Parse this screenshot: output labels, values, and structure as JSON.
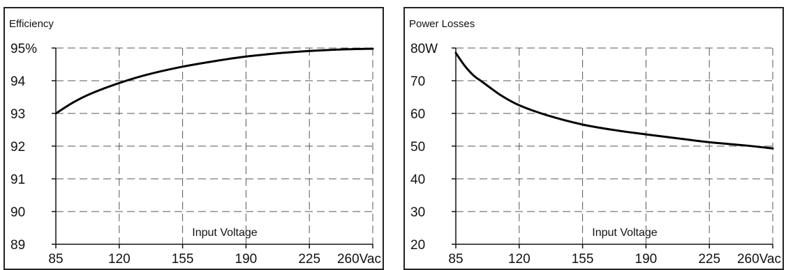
{
  "chart_data": [
    {
      "type": "line",
      "title": "Efficiency",
      "xlabel": "Input Voltage",
      "ylabel": "",
      "x_ticks": [
        85,
        120,
        155,
        190,
        225,
        260
      ],
      "x_tick_labels": [
        "85",
        "120",
        "155",
        "190",
        "225",
        "260Vac"
      ],
      "xlim": [
        85,
        260
      ],
      "y_ticks": [
        89,
        90,
        91,
        92,
        93,
        94,
        95
      ],
      "y_tick_labels": [
        "89",
        "90",
        "91",
        "92",
        "93",
        "94",
        "95%"
      ],
      "ylim": [
        89,
        95
      ],
      "grid": true,
      "series": [
        {
          "x": [
            85,
            95,
            105,
            120,
            135,
            155,
            175,
            190,
            210,
            225,
            245,
            260
          ],
          "y": [
            93.0,
            93.35,
            93.62,
            93.93,
            94.18,
            94.43,
            94.62,
            94.74,
            94.85,
            94.91,
            94.96,
            94.98
          ]
        }
      ]
    },
    {
      "type": "line",
      "title": "Power Losses",
      "xlabel": "Input Voltage",
      "ylabel": "",
      "x_ticks": [
        85,
        120,
        155,
        190,
        225,
        260
      ],
      "x_tick_labels": [
        "85",
        "120",
        "155",
        "190",
        "225",
        "260Vac"
      ],
      "xlim": [
        85,
        260
      ],
      "y_ticks": [
        20,
        30,
        40,
        50,
        60,
        70,
        80
      ],
      "y_tick_labels": [
        "20",
        "30",
        "40",
        "50",
        "60",
        "70",
        "80W"
      ],
      "ylim": [
        20,
        80
      ],
      "grid": true,
      "series": [
        {
          "x": [
            85,
            90,
            95,
            100,
            110,
            120,
            135,
            155,
            175,
            190,
            210,
            225,
            245,
            260
          ],
          "y": [
            78.5,
            74.5,
            71.5,
            69.5,
            65.5,
            62.5,
            59.5,
            56.6,
            54.7,
            53.6,
            52.2,
            51.2,
            50.2,
            49.3
          ]
        }
      ]
    }
  ]
}
